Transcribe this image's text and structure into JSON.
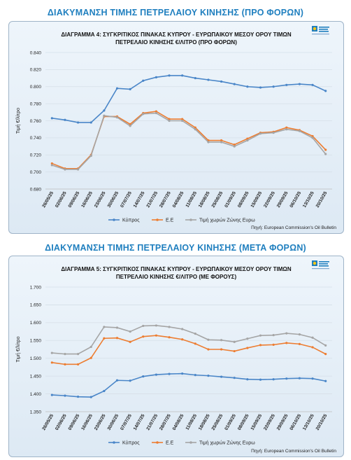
{
  "chart_data": [
    {
      "type": "line",
      "section_title": "ΔΙΑΚΥΜΑΝΣΗ ΤΙΜΗΣ ΠΕΤΡΕΛΑΙΟΥ ΚΙΝΗΣΗΣ (ΠΡΟ ΦΟΡΩΝ)",
      "title_line1": "ΔΙΑΓΡΑΜΜΑ 4: ΣΥΓΚΡΙΤΙΚΟΣ ΠΙΝΑΚΑΣ ΚΥΠΡΟΥ - ΕΥΡΩΠΑΙΚΟΥ ΜΕΣΟΥ ΟΡΟΥ ΤΙΜΩΝ",
      "title_line2": "ΠΕΤΡΕΛΑΙΟ ΚΙΝΗΣΗΣ €/ΛΙΤΡΟ (ΠΡΟ ΦΟΡΩΝ)",
      "ylabel": "Τιμή €/λίτρο",
      "ylim": [
        0.68,
        0.84
      ],
      "yticks": [
        "0.680",
        "0.700",
        "0.720",
        "0.740",
        "0.760",
        "0.780",
        "0.800",
        "0.820",
        "0.840"
      ],
      "source": "Πηγή: European Commission's Oil Bulletin",
      "legend_position": "bottom",
      "categories": [
        "26/05/25",
        "02/06/25",
        "09/06/25",
        "16/06/25",
        "23/06/25",
        "30/06/25",
        "07/07/25",
        "14/07/25",
        "21/07/25",
        "28/07/25",
        "04/08/25",
        "11/08/25",
        "18/08/25",
        "25/08/25",
        "01/09/25",
        "08/09/25",
        "15/09/25",
        "22/09/25",
        "29/09/25",
        "06/10/25",
        "13/10/25",
        "20/10/25"
      ],
      "series": [
        {
          "name": "Κύπρος",
          "color": "#4a86c8",
          "values": [
            0.763,
            0.761,
            0.758,
            0.758,
            0.772,
            0.798,
            0.797,
            0.807,
            0.811,
            0.813,
            0.813,
            0.81,
            0.808,
            0.806,
            0.803,
            0.8,
            0.799,
            0.8,
            0.802,
            0.803,
            0.802,
            0.795
          ]
        },
        {
          "name": "Ε.Ε",
          "color": "#ed7d31",
          "values": [
            0.71,
            0.704,
            0.704,
            0.72,
            0.765,
            0.765,
            0.756,
            0.769,
            0.771,
            0.762,
            0.762,
            0.752,
            0.737,
            0.737,
            0.732,
            0.739,
            0.746,
            0.747,
            0.752,
            0.749,
            0.742,
            0.726
          ]
        },
        {
          "name": "Τιμή χωρών Ζώνης Ευρω",
          "color": "#a5a5a5",
          "values": [
            0.708,
            0.703,
            0.703,
            0.719,
            0.766,
            0.764,
            0.754,
            0.768,
            0.769,
            0.76,
            0.76,
            0.75,
            0.735,
            0.735,
            0.73,
            0.737,
            0.745,
            0.746,
            0.75,
            0.748,
            0.74,
            0.721
          ]
        }
      ]
    },
    {
      "type": "line",
      "section_title": "ΔΙΑΚΥΜΑΝΣΗ ΤΙΜΗΣ ΠΕΤΡΕΛΑΙΟΥ ΚΙΝΗΣΗΣ (ΜΕΤΑ ΦΟΡΩΝ)",
      "title_line1": "ΔΙΑΓΡΑΜΜΑ 5: ΣΥΓΚΡΙΤΙΚΟΣ ΠΙΝΑΚΑΣ ΚΥΠΡΟΥ - ΕΥΡΩΠΑΙΚΟΥ ΜΕΣΟΥ ΟΡΟΥ ΤΙΜΩΝ",
      "title_line2": "ΠΕΤΡΕΛΑΙΟ ΚΙΝΗΣΗΣ €/ΛΙΤΡΟ (ΜΕ ΦΟΡΟΥΣ)",
      "ylabel": "Τιμή €/λίτρο",
      "ylim": [
        1.35,
        1.7
      ],
      "yticks": [
        "1.350",
        "1.400",
        "1.450",
        "1.500",
        "1.550",
        "1.600",
        "1.650",
        "1.700"
      ],
      "source": "Πηγή: European Commission's Oil Bulletin",
      "legend_position": "bottom",
      "categories": [
        "26/05/25",
        "02/06/25",
        "09/06/25",
        "16/06/25",
        "23/06/25",
        "30/06/25",
        "07/07/25",
        "14/07/25",
        "21/07/25",
        "28/07/25",
        "04/08/25",
        "11/08/25",
        "18/08/25",
        "25/08/25",
        "01/09/25",
        "08/09/25",
        "15/09/25",
        "22/09/25",
        "29/09/25",
        "06/10/25",
        "13/10/25",
        "20/10/25"
      ],
      "series": [
        {
          "name": "Κύπρος",
          "color": "#4a86c8",
          "values": [
            1.397,
            1.395,
            1.392,
            1.391,
            1.408,
            1.438,
            1.437,
            1.449,
            1.454,
            1.456,
            1.457,
            1.453,
            1.451,
            1.448,
            1.445,
            1.441,
            1.44,
            1.441,
            1.443,
            1.444,
            1.443,
            1.436
          ]
        },
        {
          "name": "Ε.Ε",
          "color": "#ed7d31",
          "values": [
            1.488,
            1.483,
            1.483,
            1.501,
            1.556,
            1.557,
            1.546,
            1.561,
            1.564,
            1.559,
            1.553,
            1.541,
            1.525,
            1.525,
            1.52,
            1.529,
            1.537,
            1.538,
            1.543,
            1.54,
            1.531,
            1.512
          ]
        },
        {
          "name": "Τιμή χωρών Ζώνης Ευρω",
          "color": "#a5a5a5",
          "values": [
            1.515,
            1.512,
            1.512,
            1.532,
            1.588,
            1.586,
            1.575,
            1.591,
            1.592,
            1.588,
            1.582,
            1.569,
            1.552,
            1.551,
            1.546,
            1.555,
            1.564,
            1.565,
            1.57,
            1.567,
            1.558,
            1.536
          ]
        }
      ]
    }
  ]
}
